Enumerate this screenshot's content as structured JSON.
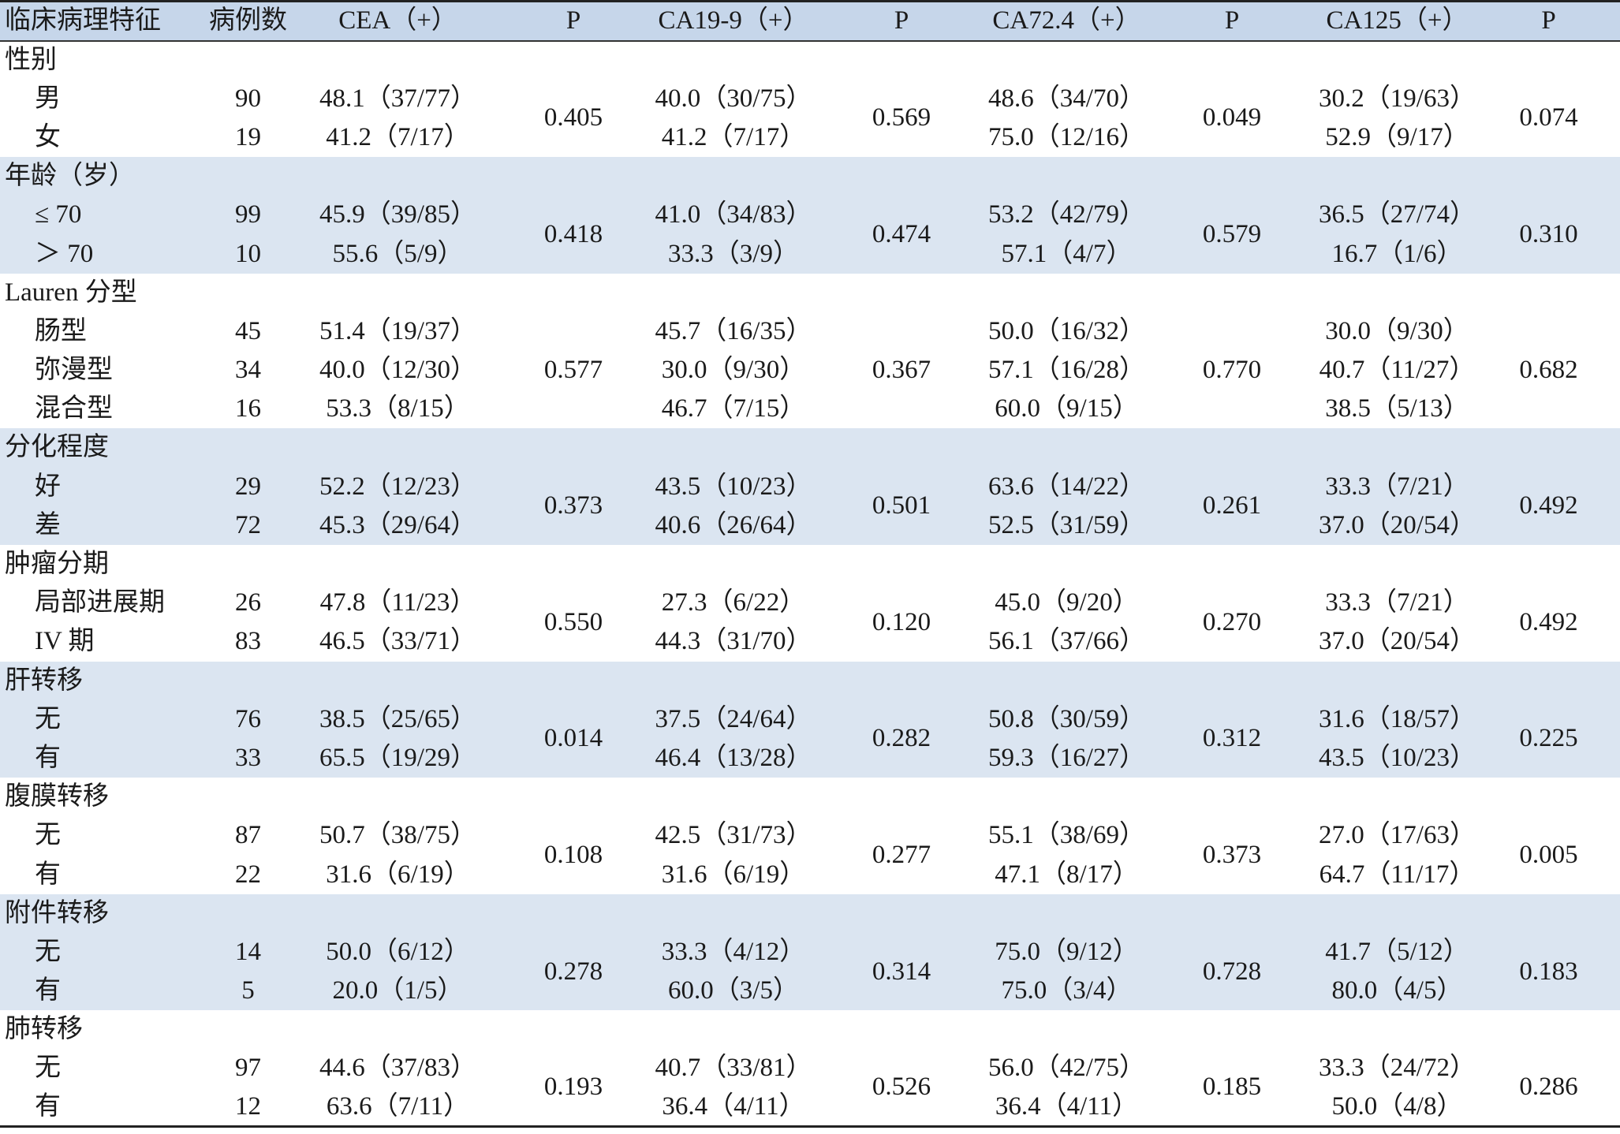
{
  "header": [
    "临床病理特征",
    "病例数",
    "CEA（+）",
    "P",
    "CA19-9（+）",
    "P",
    "CA72.4（+）",
    "P",
    "CA125（+）",
    "P"
  ],
  "groups": [
    {
      "title": "性别",
      "rows": [
        [
          "男",
          "90",
          "48.1（37/77）",
          "40.0（30/75）",
          "48.6（34/70）",
          "30.2（19/63）"
        ],
        [
          "女",
          "19",
          "41.2（7/17）",
          "41.2（7/17）",
          "75.0（12/16）",
          "52.9（9/17）"
        ]
      ],
      "p": [
        "0.405",
        "0.569",
        "0.049",
        "0.074"
      ]
    },
    {
      "title": "年龄（岁）",
      "rows": [
        [
          "≤ 70",
          "99",
          "45.9（39/85）",
          "41.0（34/83）",
          "53.2（42/79）",
          "36.5（27/74）"
        ],
        [
          "＞ 70",
          "10",
          "55.6（5/9）",
          "33.3（3/9）",
          "57.1（4/7）",
          "16.7（1/6）"
        ]
      ],
      "p": [
        "0.418",
        "0.474",
        "0.579",
        "0.310"
      ]
    },
    {
      "title": "Lauren 分型",
      "rows": [
        [
          "肠型",
          "45",
          "51.4（19/37）",
          "45.7（16/35）",
          "50.0（16/32）",
          "30.0（9/30）"
        ],
        [
          "弥漫型",
          "34",
          "40.0（12/30）",
          "30.0（9/30）",
          "57.1（16/28）",
          "40.7（11/27）"
        ],
        [
          "混合型",
          "16",
          "53.3（8/15）",
          "46.7（7/15）",
          "60.0（9/15）",
          "38.5（5/13）"
        ]
      ],
      "p": [
        "0.577",
        "0.367",
        "0.770",
        "0.682"
      ]
    },
    {
      "title": "分化程度",
      "rows": [
        [
          "好",
          "29",
          "52.2（12/23）",
          "43.5（10/23）",
          "63.6（14/22）",
          "33.3（7/21）"
        ],
        [
          "差",
          "72",
          "45.3（29/64）",
          "40.6（26/64）",
          "52.5（31/59）",
          "37.0（20/54）"
        ]
      ],
      "p": [
        "0.373",
        "0.501",
        "0.261",
        "0.492"
      ]
    },
    {
      "title": "肿瘤分期",
      "rows": [
        [
          "局部进展期",
          "26",
          "47.8（11/23）",
          "27.3（6/22）",
          "45.0（9/20）",
          "33.3（7/21）"
        ],
        [
          "IV 期",
          "83",
          "46.5（33/71）",
          "44.3（31/70）",
          "56.1（37/66）",
          "37.0（20/54）"
        ]
      ],
      "p": [
        "0.550",
        "0.120",
        "0.270",
        "0.492"
      ]
    },
    {
      "title": "肝转移",
      "rows": [
        [
          "无",
          "76",
          "38.5（25/65）",
          "37.5（24/64）",
          "50.8（30/59）",
          "31.6（18/57）"
        ],
        [
          "有",
          "33",
          "65.5（19/29）",
          "46.4（13/28）",
          "59.3（16/27）",
          "43.5（10/23）"
        ]
      ],
      "p": [
        "0.014",
        "0.282",
        "0.312",
        "0.225"
      ]
    },
    {
      "title": "腹膜转移",
      "rows": [
        [
          "无",
          "87",
          "50.7（38/75）",
          "42.5（31/73）",
          "55.1（38/69）",
          "27.0（17/63）"
        ],
        [
          "有",
          "22",
          "31.6（6/19）",
          "31.6（6/19）",
          "47.1（8/17）",
          "64.7（11/17）"
        ]
      ],
      "p": [
        "0.108",
        "0.277",
        "0.373",
        "0.005"
      ]
    },
    {
      "title": "附件转移",
      "rows": [
        [
          "无",
          "14",
          "50.0（6/12）",
          "33.3（4/12）",
          "75.0（9/12）",
          "41.7（5/12）"
        ],
        [
          "有",
          "5",
          "20.0（1/5）",
          "60.0（3/5）",
          "75.0（3/4）",
          "80.0（4/5）"
        ]
      ],
      "p": [
        "0.278",
        "0.314",
        "0.728",
        "0.183"
      ]
    },
    {
      "title": "肺转移",
      "rows": [
        [
          "无",
          "97",
          "44.6（37/83）",
          "40.7（33/81）",
          "56.0（42/75）",
          "33.3（24/72）"
        ],
        [
          "有",
          "12",
          "63.6（7/11）",
          "36.4（4/11）",
          "36.4（4/11）",
          "50.0（4/8）"
        ]
      ],
      "p": [
        "0.193",
        "0.526",
        "0.185",
        "0.286"
      ]
    }
  ]
}
